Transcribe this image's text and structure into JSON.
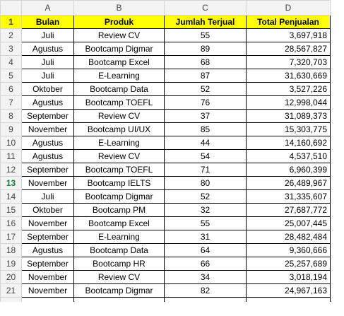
{
  "columns": [
    "A",
    "B",
    "C",
    "D"
  ],
  "headers": [
    "Bulan",
    "Produk",
    "Jumlah Terjual",
    "Total Penjualan"
  ],
  "rows": [
    {
      "num": "2",
      "bulan": "Juli",
      "produk": "Review CV",
      "jumlah": "55",
      "total": "3,697,918"
    },
    {
      "num": "3",
      "bulan": "Agustus",
      "produk": "Bootcamp Digmar",
      "jumlah": "89",
      "total": "28,567,827"
    },
    {
      "num": "4",
      "bulan": "Juli",
      "produk": "Bootcamp Excel",
      "jumlah": "68",
      "total": "7,320,703"
    },
    {
      "num": "5",
      "bulan": "Juli",
      "produk": "E-Learning",
      "jumlah": "87",
      "total": "31,630,669"
    },
    {
      "num": "6",
      "bulan": "Oktober",
      "produk": "Bootcamp Data",
      "jumlah": "52",
      "total": "3,527,226"
    },
    {
      "num": "7",
      "bulan": "Agustus",
      "produk": "Bootcamp TOEFL",
      "jumlah": "76",
      "total": "12,998,044"
    },
    {
      "num": "8",
      "bulan": "September",
      "produk": "Review CV",
      "jumlah": "37",
      "total": "31,089,373"
    },
    {
      "num": "9",
      "bulan": "November",
      "produk": "Bootcamp UI/UX",
      "jumlah": "85",
      "total": "15,303,775"
    },
    {
      "num": "10",
      "bulan": "Agustus",
      "produk": "E-Learning",
      "jumlah": "44",
      "total": "14,160,692"
    },
    {
      "num": "11",
      "bulan": "Agustus",
      "produk": "Review CV",
      "jumlah": "54",
      "total": "4,537,510"
    },
    {
      "num": "12",
      "bulan": "September",
      "produk": "Bootcamp TOEFL",
      "jumlah": "71",
      "total": "6,960,399"
    },
    {
      "num": "13",
      "bulan": "November",
      "produk": "Bootcamp IELTS",
      "jumlah": "80",
      "total": "26,489,967"
    },
    {
      "num": "14",
      "bulan": "Juli",
      "produk": "Bootcamp Digmar",
      "jumlah": "52",
      "total": "31,335,607"
    },
    {
      "num": "15",
      "bulan": "Oktober",
      "produk": "Bootcamp PM",
      "jumlah": "32",
      "total": "27,687,772"
    },
    {
      "num": "16",
      "bulan": "November",
      "produk": "Bootcamp Excel",
      "jumlah": "55",
      "total": "25,007,445"
    },
    {
      "num": "17",
      "bulan": "September",
      "produk": "E-Learning",
      "jumlah": "31",
      "total": "28,482,484"
    },
    {
      "num": "18",
      "bulan": "Agustus",
      "produk": "Bootcamp Data",
      "jumlah": "64",
      "total": "9,360,666"
    },
    {
      "num": "19",
      "bulan": "September",
      "produk": "Bootcamp HR",
      "jumlah": "66",
      "total": "25,257,689"
    },
    {
      "num": "20",
      "bulan": "November",
      "produk": "Review CV",
      "jumlah": "34",
      "total": "3,018,194"
    },
    {
      "num": "21",
      "bulan": "November",
      "produk": "Bootcamp Digmar",
      "jumlah": "82",
      "total": "24,967,163"
    }
  ],
  "header_row_num": "1",
  "tail_row_num": "22",
  "selected_row": "13"
}
